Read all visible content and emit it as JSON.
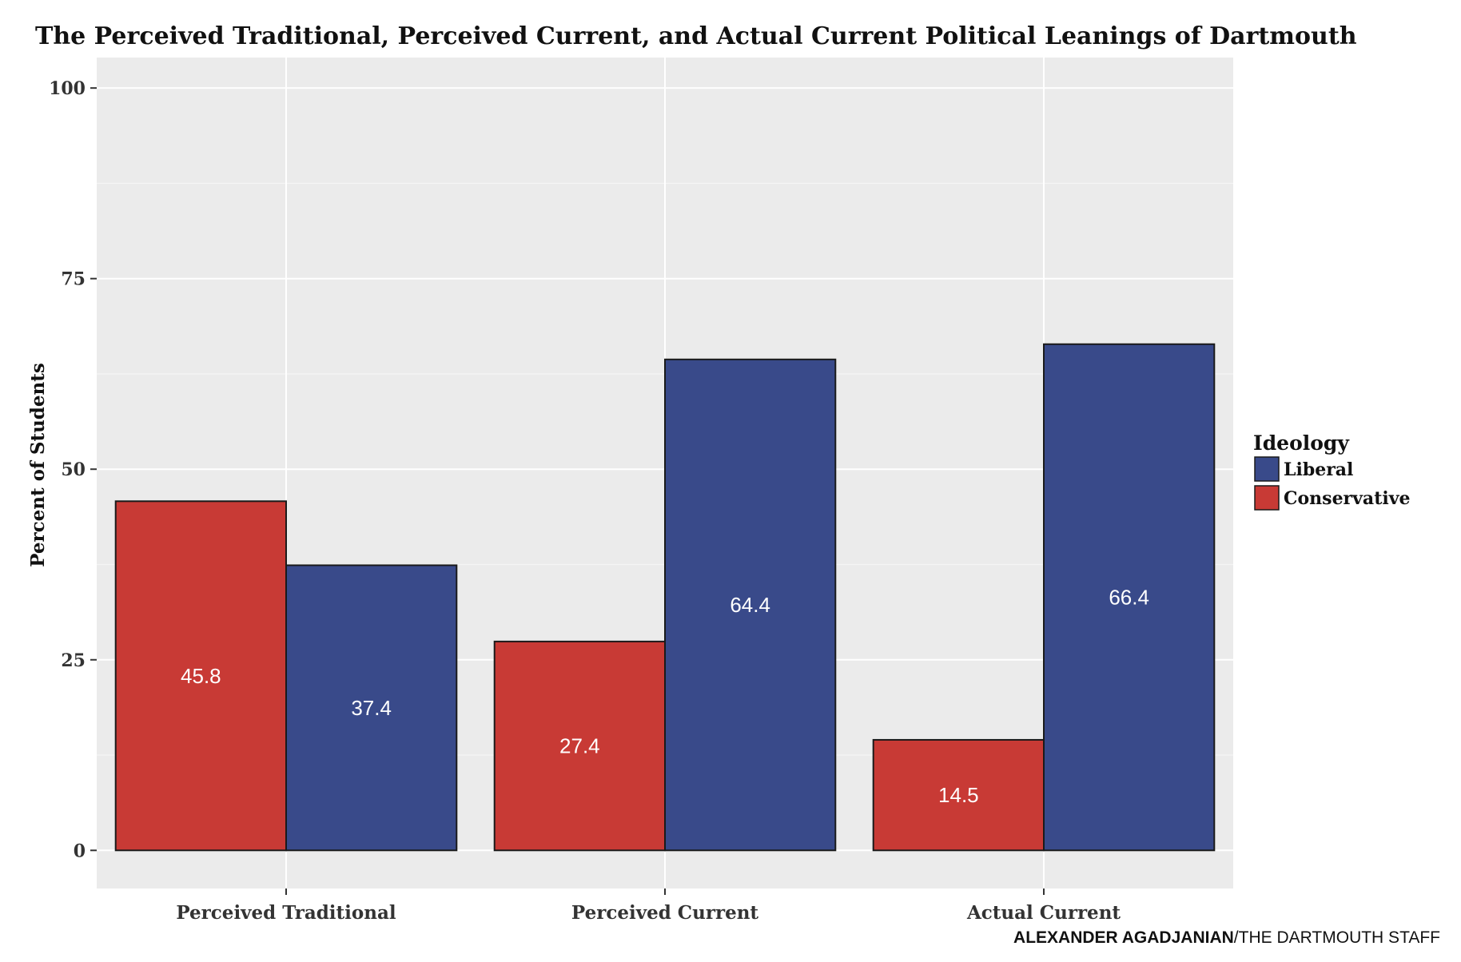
{
  "chart_data": {
    "type": "bar",
    "title": "The Perceived Traditional, Perceived Current, and Actual Current Political Leanings of Dartmouth",
    "xlabel": "",
    "ylabel": "Percent of Students",
    "ylim": [
      -5,
      104
    ],
    "yticks": [
      0,
      25,
      50,
      75,
      100
    ],
    "categories": [
      "Perceived Traditional",
      "Perceived Current",
      "Actual Current"
    ],
    "legend_title": "Ideology",
    "legend_position": "right",
    "grid": true,
    "series": [
      {
        "name": "Conservative",
        "color": "#c83a35",
        "values": [
          45.8,
          27.4,
          14.5
        ]
      },
      {
        "name": "Liberal",
        "color": "#394a8a",
        "values": [
          37.4,
          64.4,
          66.4
        ]
      }
    ],
    "legend_order": [
      "Liberal",
      "Conservative"
    ]
  },
  "credit": {
    "author": "ALEXANDER AGADJANIAN",
    "organization": "/THE DARTMOUTH STAFF"
  }
}
